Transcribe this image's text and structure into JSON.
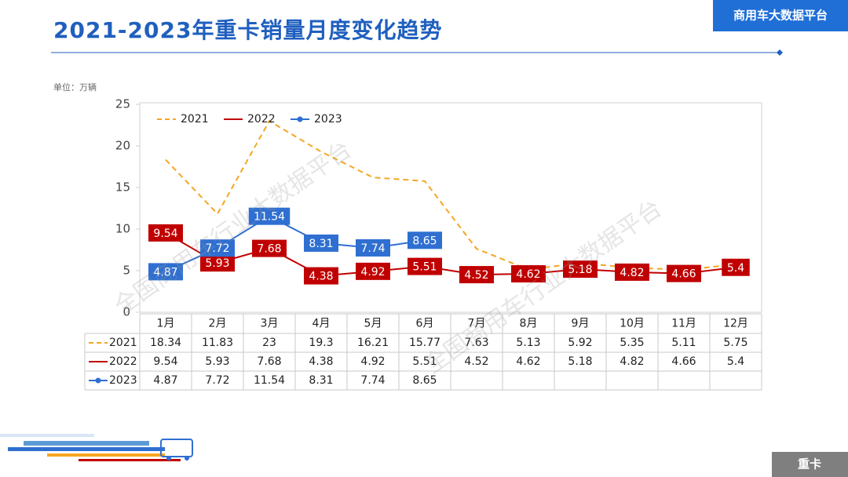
{
  "header": {
    "title": "2021-2023年重卡销量月度变化趋势",
    "brand": "商用车大数据平台",
    "footer_tag": "重卡",
    "watermark": "全国商用车行业大数据平台"
  },
  "chart_data": {
    "type": "line",
    "unit_label": "单位：万辆",
    "categories": [
      "1月",
      "2月",
      "3月",
      "4月",
      "5月",
      "6月",
      "7月",
      "8月",
      "9月",
      "10月",
      "11月",
      "12月"
    ],
    "series": [
      {
        "name": "2021",
        "color": "#f5a623",
        "dashed": true,
        "markers": false,
        "data_labels": false,
        "values": [
          18.34,
          11.83,
          23,
          19.3,
          16.21,
          15.77,
          7.63,
          5.13,
          5.92,
          5.35,
          5.11,
          5.75
        ]
      },
      {
        "name": "2022",
        "color": "#c00000",
        "dashed": false,
        "markers": false,
        "data_labels": true,
        "values": [
          9.54,
          5.93,
          7.68,
          4.38,
          4.92,
          5.51,
          4.52,
          4.62,
          5.18,
          4.82,
          4.66,
          5.4
        ]
      },
      {
        "name": "2023",
        "color": "#2f6fd1",
        "dashed": false,
        "markers": true,
        "data_labels": true,
        "values": [
          4.87,
          7.72,
          11.54,
          8.31,
          7.74,
          8.65,
          null,
          null,
          null,
          null,
          null,
          null
        ]
      }
    ],
    "ylim": [
      0,
      25
    ],
    "yticks": [
      0,
      5,
      10,
      15,
      20,
      25
    ],
    "legend": "top-left",
    "grid": false
  }
}
